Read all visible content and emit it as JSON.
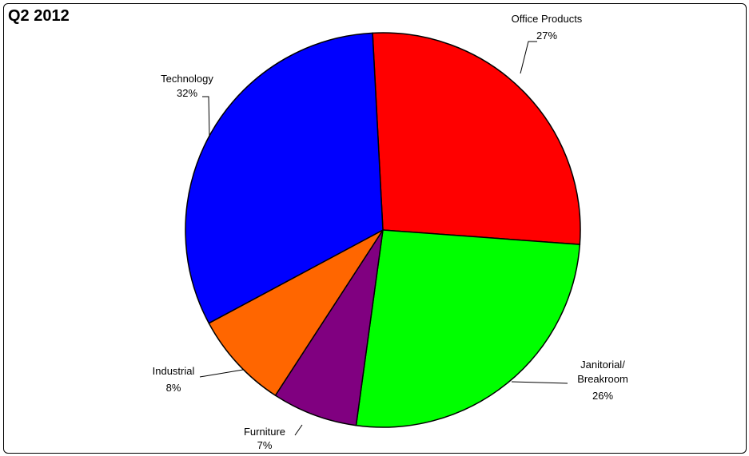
{
  "chart_data": {
    "type": "pie",
    "title": "Q2 2012",
    "slices": [
      {
        "label_lines": [
          "Office Products"
        ],
        "pct_label": "27%",
        "value": 27,
        "color": "#ff0000"
      },
      {
        "label_lines": [
          "Janitorial/",
          "Breakroom"
        ],
        "pct_label": "26%",
        "value": 26,
        "color": "#00ff00"
      },
      {
        "label_lines": [
          "Furniture"
        ],
        "pct_label": "7%",
        "value": 7,
        "color": "#800080"
      },
      {
        "label_lines": [
          "Industrial"
        ],
        "pct_label": "8%",
        "value": 8,
        "color": "#ff6600"
      },
      {
        "label_lines": [
          "Technology"
        ],
        "pct_label": "32%",
        "value": 32,
        "color": "#0000ff"
      }
    ]
  }
}
